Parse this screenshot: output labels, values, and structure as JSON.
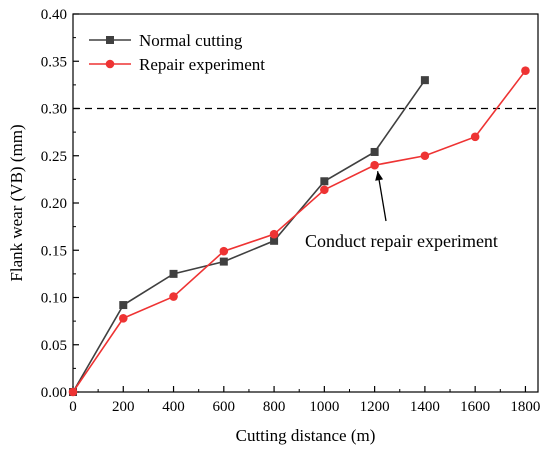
{
  "chart_data": {
    "type": "line",
    "xlabel": "Cutting distance (m)",
    "ylabel": "Flank wear  (VB) (mm)",
    "xlim": [
      0,
      1850
    ],
    "ylim": [
      0,
      0.4
    ],
    "x_ticks": [
      0,
      200,
      400,
      600,
      800,
      1000,
      1200,
      1400,
      1600,
      1800
    ],
    "y_ticks": [
      0.0,
      0.05,
      0.1,
      0.15,
      0.2,
      0.25,
      0.3,
      0.35,
      0.4
    ],
    "grid": false,
    "legend_position": "top-left",
    "threshold": {
      "y": 0.3,
      "style": "dashed",
      "color": "#000000"
    },
    "series": [
      {
        "name": "Normal cutting",
        "color": "#404040",
        "marker": "square",
        "x": [
          0,
          200,
          400,
          600,
          800,
          1000,
          1200,
          1400
        ],
        "y": [
          0.0,
          0.092,
          0.125,
          0.138,
          0.16,
          0.223,
          0.254,
          0.33
        ]
      },
      {
        "name": "Repair experiment",
        "color": "#ee3333",
        "marker": "circle",
        "x": [
          0,
          200,
          400,
          600,
          800,
          1000,
          1200,
          1400,
          1600,
          1800
        ],
        "y": [
          0.0,
          0.078,
          0.101,
          0.149,
          0.167,
          0.214,
          0.24,
          0.25,
          0.27,
          0.34
        ]
      }
    ],
    "annotations": [
      {
        "text": "Conduct repair experiment",
        "arrow_to": {
          "x": 1200,
          "y": 0.24
        }
      }
    ]
  }
}
